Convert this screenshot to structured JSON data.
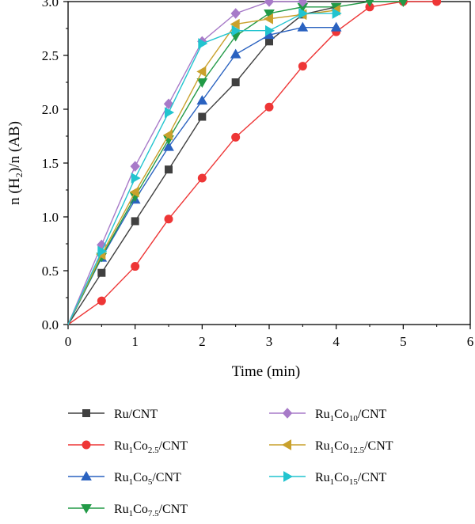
{
  "chart_data": {
    "type": "line",
    "xlabel": "Time (min)",
    "ylabel": "n (H₂)/n (AB)",
    "xlim": [
      0,
      6
    ],
    "ylim": [
      0,
      3.0
    ],
    "xticks": [
      0,
      1,
      2,
      3,
      4,
      5,
      6
    ],
    "yticks": [
      0.0,
      0.5,
      1.0,
      1.5,
      2.0,
      2.5,
      3.0
    ],
    "xtick_labels": [
      "0",
      "1",
      "2",
      "3",
      "4",
      "5",
      "6"
    ],
    "ytick_labels": [
      "0.0",
      "0.5",
      "1.0",
      "1.5",
      "2.0",
      "2.5",
      "3.0"
    ],
    "grid": false,
    "legend_position": "bottom",
    "series": [
      {
        "name": "Ru/CNT",
        "name_parts": [
          {
            "t": "Ru/CNT",
            "sub": false
          }
        ],
        "color": "#404040",
        "marker": "square",
        "x": [
          0,
          0.5,
          1,
          1.5,
          2,
          2.5,
          3,
          3.5,
          4
        ],
        "y": [
          0,
          0.48,
          0.96,
          1.44,
          1.93,
          2.25,
          2.63,
          2.88,
          2.95
        ]
      },
      {
        "name": "Ru1Co2.5/CNT",
        "name_parts": [
          {
            "t": "Ru",
            "sub": false
          },
          {
            "t": "1",
            "sub": true
          },
          {
            "t": "Co",
            "sub": false
          },
          {
            "t": "2.5",
            "sub": true
          },
          {
            "t": "/CNT",
            "sub": false
          }
        ],
        "color": "#ee3636",
        "marker": "circle",
        "x": [
          0,
          0.5,
          1,
          1.5,
          2,
          2.5,
          3,
          3.5,
          4,
          4.5,
          5,
          5.5
        ],
        "y": [
          0,
          0.22,
          0.54,
          0.98,
          1.36,
          1.74,
          2.02,
          2.4,
          2.72,
          2.95,
          3.0,
          3.0
        ]
      },
      {
        "name": "Ru1Co5/CNT",
        "name_parts": [
          {
            "t": "Ru",
            "sub": false
          },
          {
            "t": "1",
            "sub": true
          },
          {
            "t": "Co",
            "sub": false
          },
          {
            "t": "5",
            "sub": true
          },
          {
            "t": "/CNT",
            "sub": false
          }
        ],
        "color": "#2a62c0",
        "marker": "triangle-up",
        "x": [
          0,
          0.5,
          1,
          1.5,
          2,
          2.5,
          3,
          3.5,
          4
        ],
        "y": [
          0,
          0.62,
          1.16,
          1.65,
          2.08,
          2.51,
          2.69,
          2.76,
          2.76
        ]
      },
      {
        "name": "Ru1Co7.5/CNT",
        "name_parts": [
          {
            "t": "Ru",
            "sub": false
          },
          {
            "t": "1",
            "sub": true
          },
          {
            "t": "Co",
            "sub": false
          },
          {
            "t": "7.5",
            "sub": true
          },
          {
            "t": "/CNT",
            "sub": false
          }
        ],
        "color": "#229a47",
        "marker": "triangle-down",
        "x": [
          0,
          0.5,
          1,
          1.5,
          2,
          2.5,
          3,
          3.5,
          4,
          4.5,
          5
        ],
        "y": [
          0,
          0.63,
          1.19,
          1.72,
          2.25,
          2.68,
          2.89,
          2.95,
          2.95,
          3.0,
          3.0
        ]
      },
      {
        "name": "Ru1Co10/CNT",
        "name_parts": [
          {
            "t": "Ru",
            "sub": false
          },
          {
            "t": "1",
            "sub": true
          },
          {
            "t": "Co",
            "sub": false
          },
          {
            "t": "10",
            "sub": true
          },
          {
            "t": "/CNT",
            "sub": false
          }
        ],
        "color": "#a77ac8",
        "marker": "diamond",
        "x": [
          0,
          0.5,
          1,
          1.5,
          2,
          2.5,
          3,
          3.5
        ],
        "y": [
          0,
          0.74,
          1.47,
          2.05,
          2.63,
          2.89,
          3.0,
          3.0
        ]
      },
      {
        "name": "Ru1Co12.5/CNT",
        "name_parts": [
          {
            "t": "Ru",
            "sub": false
          },
          {
            "t": "1",
            "sub": true
          },
          {
            "t": "Co",
            "sub": false
          },
          {
            "t": "12.5",
            "sub": true
          },
          {
            "t": "/CNT",
            "sub": false
          }
        ],
        "color": "#c9a12c",
        "marker": "triangle-left",
        "x": [
          0,
          0.5,
          1,
          1.5,
          2,
          2.5,
          3,
          3.5,
          4
        ],
        "y": [
          0,
          0.65,
          1.23,
          1.76,
          2.35,
          2.79,
          2.84,
          2.88,
          2.92
        ]
      },
      {
        "name": "Ru1Co15/CNT",
        "name_parts": [
          {
            "t": "Ru",
            "sub": false
          },
          {
            "t": "1",
            "sub": true
          },
          {
            "t": "Co",
            "sub": false
          },
          {
            "t": "15",
            "sub": true
          },
          {
            "t": "/CNT",
            "sub": false
          }
        ],
        "color": "#22c4cf",
        "marker": "triangle-right",
        "x": [
          0,
          0.5,
          1,
          1.5,
          2,
          2.5,
          3,
          3.5,
          4
        ],
        "y": [
          0,
          0.68,
          1.36,
          1.97,
          2.61,
          2.73,
          2.73,
          2.89,
          2.89
        ]
      }
    ],
    "legend_order": [
      0,
      4,
      1,
      5,
      2,
      6,
      3
    ]
  }
}
